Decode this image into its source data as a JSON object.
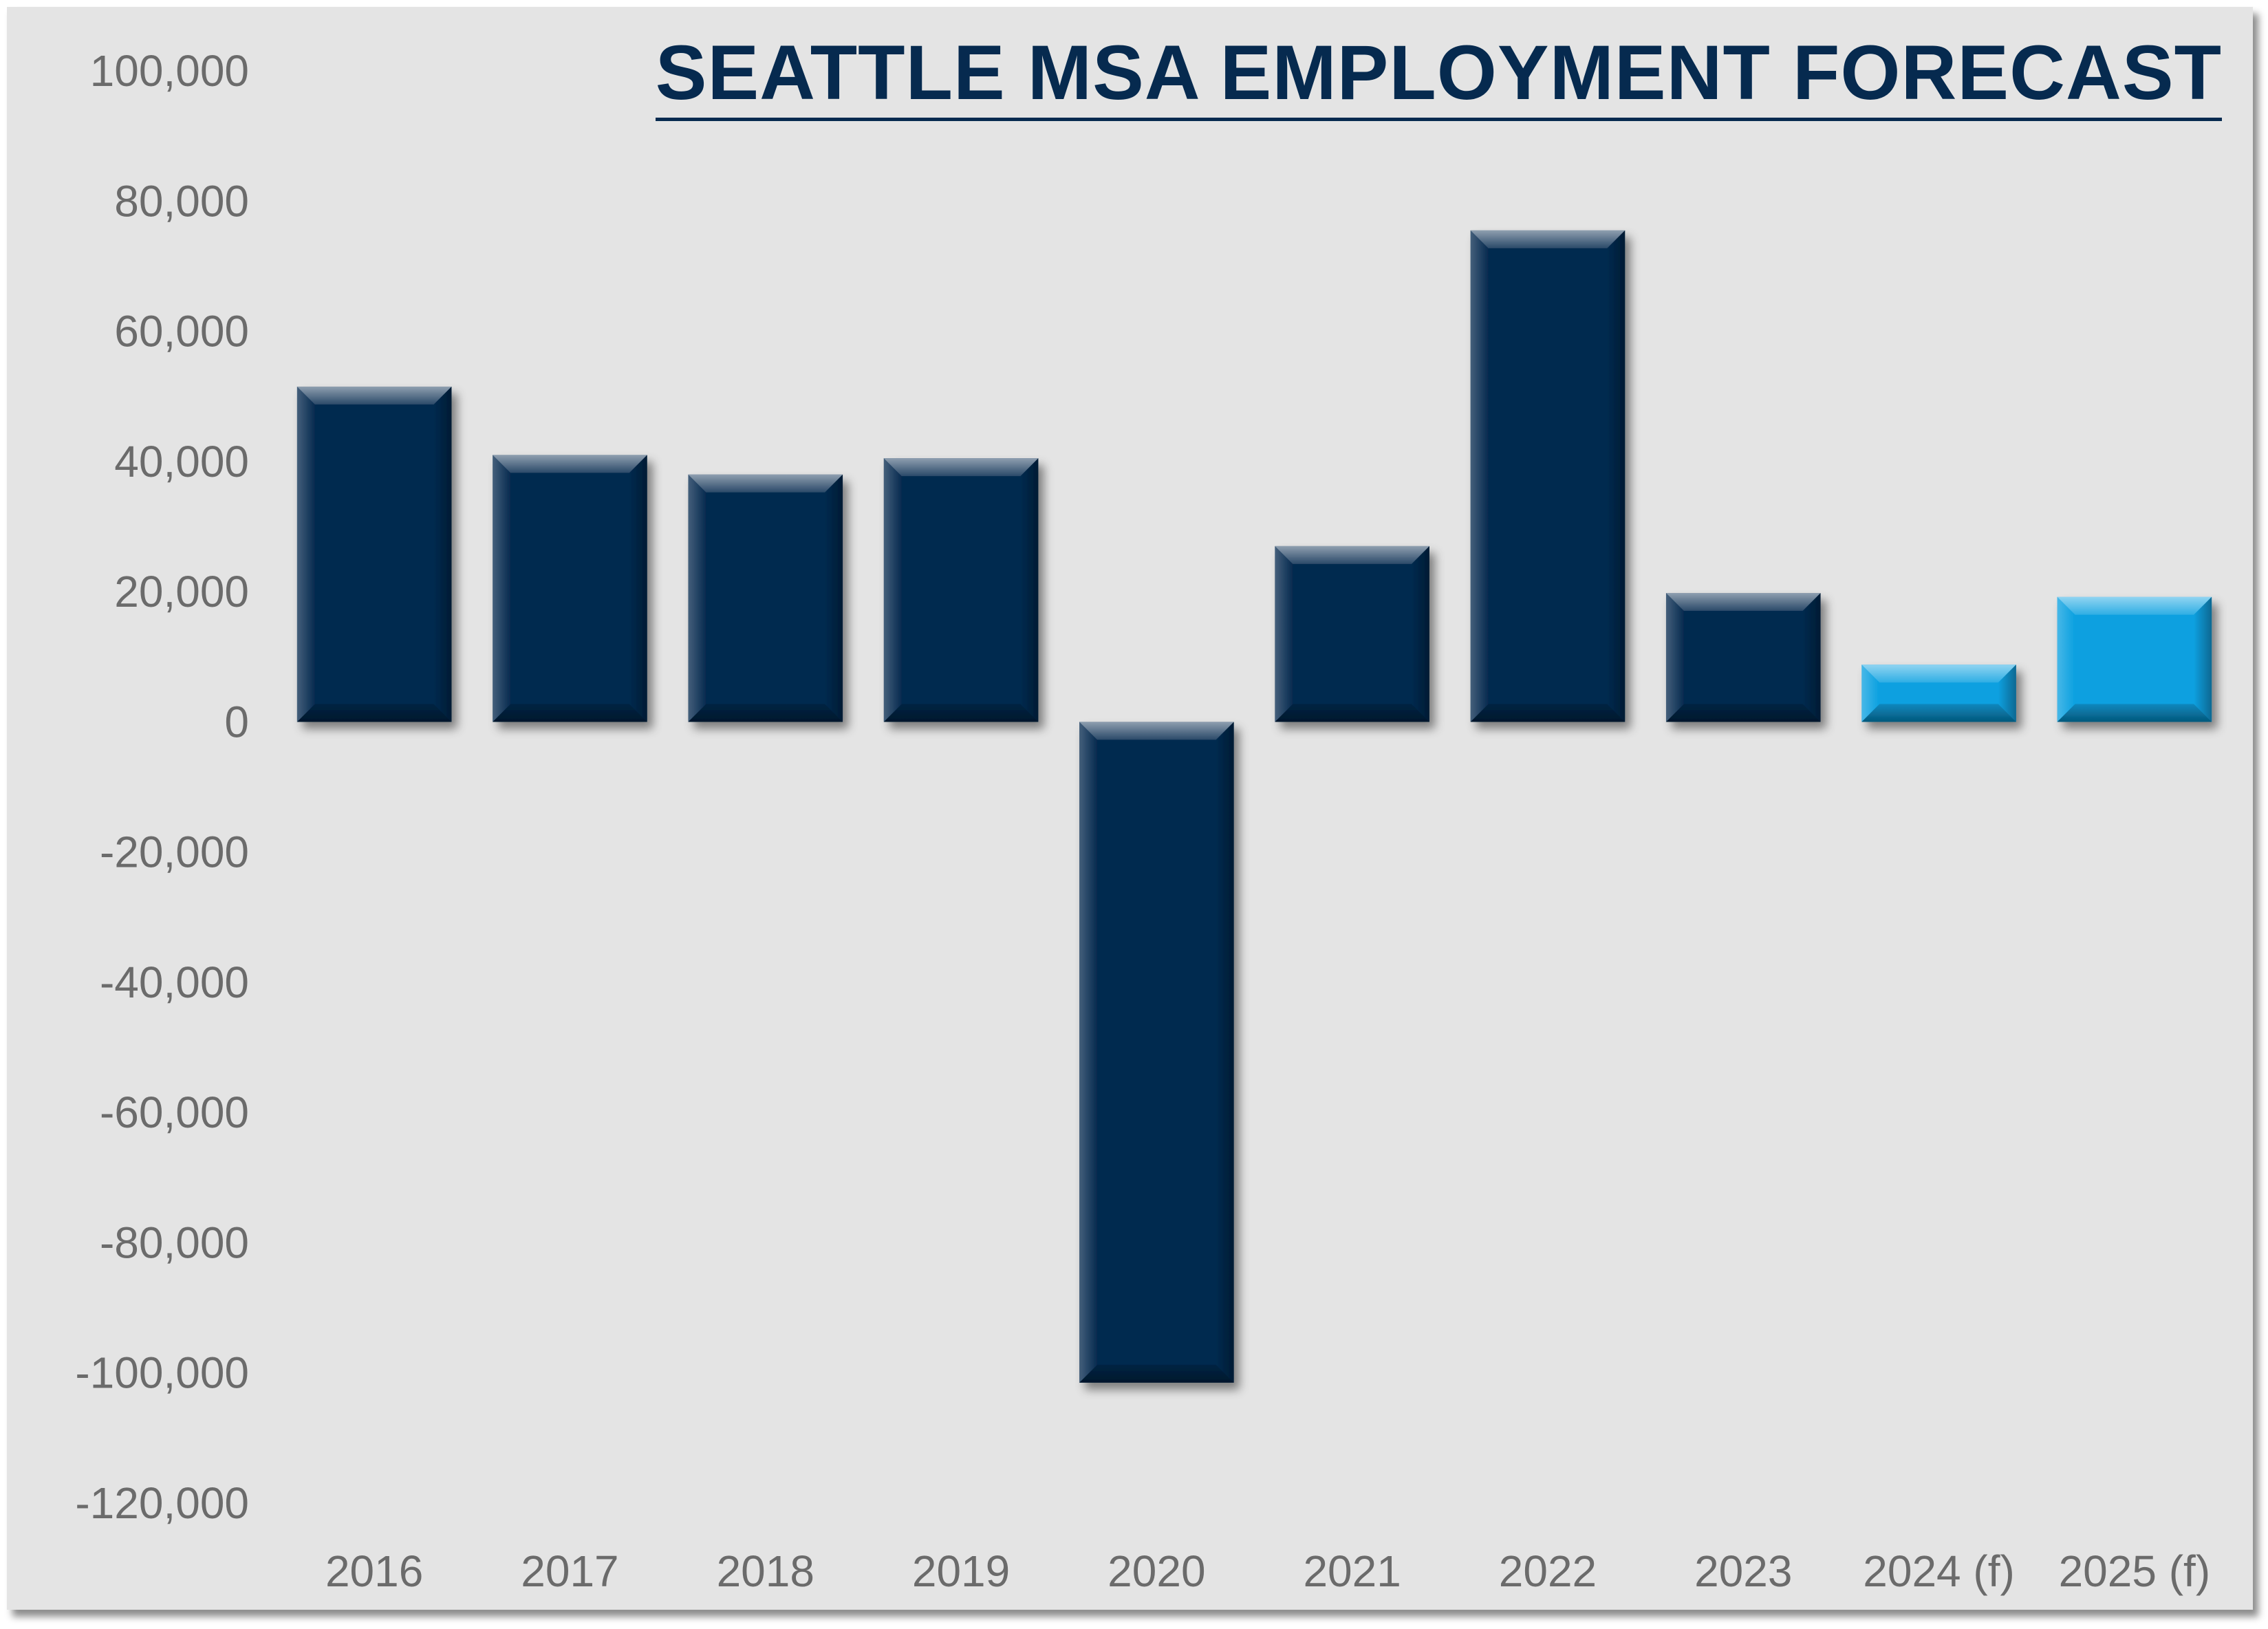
{
  "chart_data": {
    "type": "bar",
    "title": "SEATTLE MSA EMPLOYMENT FORECAST",
    "xlabel": "",
    "ylabel": "",
    "categories": [
      "2016",
      "2017",
      "2018",
      "2019",
      "2020",
      "2021",
      "2022",
      "2023",
      "2024 (f)",
      "2025 (f)"
    ],
    "values": [
      51500,
      41000,
      38000,
      40500,
      -101500,
      27000,
      75500,
      19800,
      8800,
      19200
    ],
    "forecast": [
      false,
      false,
      false,
      false,
      false,
      false,
      false,
      false,
      true,
      true
    ],
    "ylim": [
      -120000,
      100000
    ],
    "yticks": [
      100000,
      80000,
      60000,
      40000,
      20000,
      0,
      -20000,
      -40000,
      -60000,
      -80000,
      -100000,
      -120000
    ],
    "ytick_labels": [
      "100,000",
      "80,000",
      "60,000",
      "40,000",
      "20,000",
      "0",
      "-20,000",
      "-40,000",
      "-60,000",
      "-80,000",
      "-100,000",
      "-120,000"
    ],
    "grid": false,
    "legend": "none",
    "colors": {
      "actual": "#062a4f",
      "forecast": "#0aa0e0",
      "background": "#e4e4e4",
      "title": "#062a4f",
      "tick_text": "#6b6b6b"
    }
  }
}
